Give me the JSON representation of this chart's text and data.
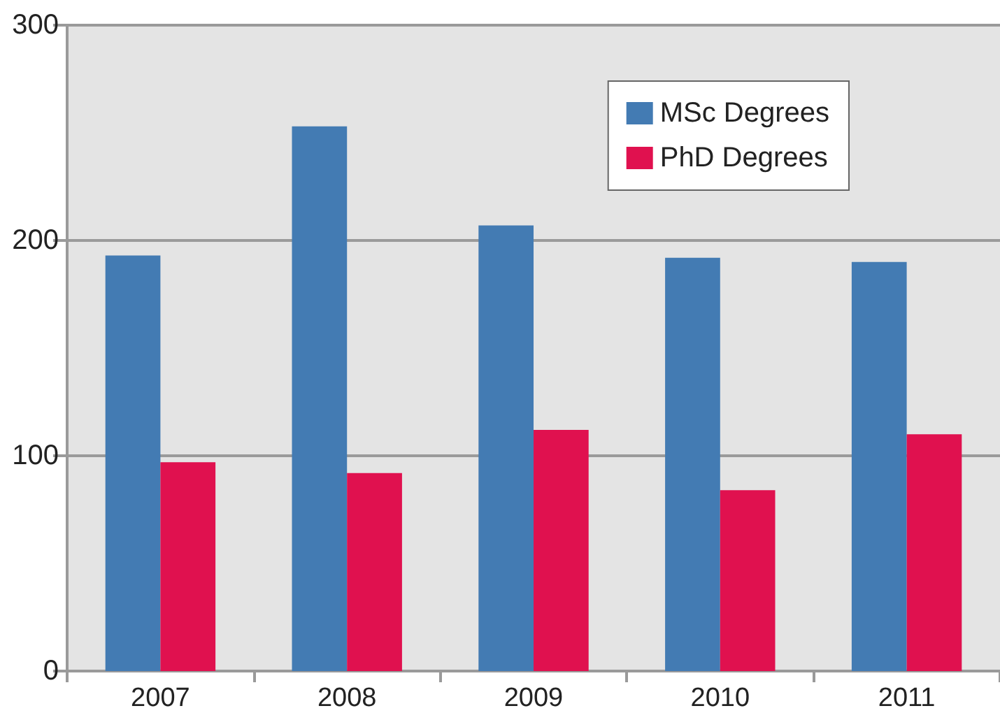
{
  "chart_data": {
    "type": "bar",
    "categories": [
      "2007",
      "2008",
      "2009",
      "2010",
      "2011"
    ],
    "series": [
      {
        "name": "MSc Degrees",
        "color": "#437bb3",
        "values": [
          193,
          253,
          207,
          192,
          190
        ]
      },
      {
        "name": "PhD Degrees",
        "color": "#e0114f",
        "values": [
          97,
          92,
          112,
          84,
          110
        ]
      }
    ],
    "ylim": [
      0,
      300
    ],
    "yticks": [
      0,
      100,
      200,
      300
    ],
    "grid": "y",
    "legend": "top right"
  }
}
